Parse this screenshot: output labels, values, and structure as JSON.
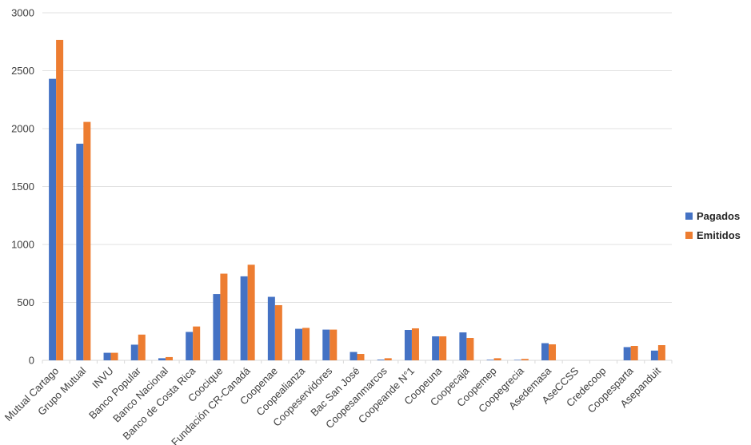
{
  "chart_data": {
    "type": "bar",
    "title": "",
    "xlabel": "",
    "ylabel": "",
    "ylim": [
      0,
      3000
    ],
    "yticks": [
      0,
      500,
      1000,
      1500,
      2000,
      2500,
      3000
    ],
    "grid": true,
    "legend_position": "right",
    "categories": [
      "Mutual Cartago",
      "Grupo Mutual",
      "INVU",
      "Banco Popular",
      "Banco Nacional",
      "Banco de Costa Rica",
      "Coocique",
      "Fundación CR-Canadá",
      "Coopenae",
      "Coopealianza",
      "Coopeservidores",
      "Bac San José",
      "Coopesanmarcos",
      "Coopeande N°1",
      "Coopeuna",
      "Coopecaja",
      "Coopemep",
      "Coopegrecia",
      "Asedemasa",
      "AseCCSS",
      "Credecoop",
      "Coopesparta",
      "Asepanduit"
    ],
    "series": [
      {
        "name": "Pagados",
        "color": "#4472C4",
        "values": [
          2430,
          1870,
          65,
          135,
          18,
          245,
          572,
          725,
          548,
          272,
          265,
          72,
          6,
          262,
          207,
          241,
          5,
          4,
          148,
          0,
          0,
          114,
          84
        ]
      },
      {
        "name": "Emitidos",
        "color": "#ED7D31",
        "values": [
          2766,
          2058,
          65,
          222,
          28,
          292,
          748,
          825,
          476,
          280,
          265,
          55,
          18,
          276,
          207,
          193,
          18,
          12,
          138,
          0,
          0,
          124,
          131
        ]
      }
    ]
  },
  "legend": {
    "items": [
      {
        "label": "Pagados",
        "color": "#4472C4"
      },
      {
        "label": "Emitidos",
        "color": "#ED7D31"
      }
    ]
  }
}
